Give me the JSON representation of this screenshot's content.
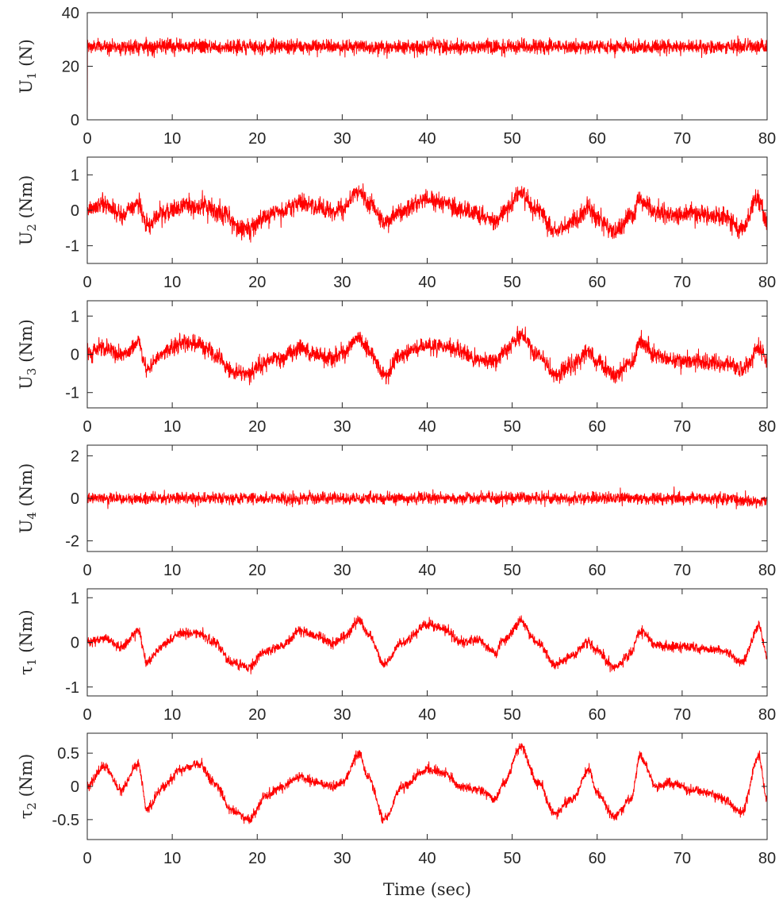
{
  "chart_data": [
    {
      "type": "line",
      "ylabel": "U_1 (N)",
      "ylabel_main": "U",
      "ylabel_sub": "1",
      "ylabel_unit": " (N)",
      "xlim": [
        0,
        80
      ],
      "ylim": [
        0,
        40
      ],
      "xticks": [
        "0",
        "10",
        "20",
        "30",
        "40",
        "50",
        "60",
        "70",
        "80"
      ],
      "yticks": [
        {
          "v": 0,
          "t": "0"
        },
        {
          "v": 20,
          "t": "20"
        },
        {
          "v": 40,
          "t": "40"
        }
      ],
      "xlabel": "",
      "grid": false,
      "series": [
        {
          "color": "#ff0000",
          "start": 0,
          "mean": 27.3,
          "noise": 1.3,
          "drift": 0.0,
          "slow": [
            [
              0.0,
              0.0
            ]
          ]
        }
      ]
    },
    {
      "type": "line",
      "ylabel": "U_2 (Nm)",
      "ylabel_main": "U",
      "ylabel_sub": "2",
      "ylabel_unit": " (Nm)",
      "xlim": [
        0,
        80
      ],
      "ylim": [
        -1.5,
        1.5
      ],
      "xticks": [
        "0",
        "10",
        "20",
        "30",
        "40",
        "50",
        "60",
        "70",
        "80"
      ],
      "yticks": [
        {
          "v": -1,
          "t": "-1"
        },
        {
          "v": 0,
          "t": "0"
        },
        {
          "v": 1,
          "t": "1"
        }
      ],
      "xlabel": "",
      "grid": false,
      "series": [
        {
          "color": "#ff0000",
          "noise": 0.17,
          "slow": [
            [
              0,
              0.05
            ],
            [
              2,
              0.15
            ],
            [
              4,
              -0.1
            ],
            [
              6,
              0.2
            ],
            [
              7,
              -0.4
            ],
            [
              9,
              -0.1
            ],
            [
              12,
              0.15
            ],
            [
              14,
              0.1
            ],
            [
              16,
              -0.1
            ],
            [
              18,
              -0.5
            ],
            [
              19,
              -0.55
            ],
            [
              21,
              -0.2
            ],
            [
              23,
              -0.05
            ],
            [
              25,
              0.2
            ],
            [
              27,
              0.1
            ],
            [
              29,
              -0.05
            ],
            [
              30,
              0.1
            ],
            [
              32,
              0.55
            ],
            [
              33,
              0.25
            ],
            [
              35,
              -0.35
            ],
            [
              37,
              0.0
            ],
            [
              40,
              0.3
            ],
            [
              42,
              0.25
            ],
            [
              44,
              0.0
            ],
            [
              46,
              -0.1
            ],
            [
              48,
              -0.35
            ],
            [
              49,
              -0.05
            ],
            [
              51,
              0.45
            ],
            [
              53,
              0.0
            ],
            [
              55,
              -0.6
            ],
            [
              57,
              -0.35
            ],
            [
              59,
              0.05
            ],
            [
              60,
              -0.2
            ],
            [
              62,
              -0.65
            ],
            [
              64,
              -0.2
            ],
            [
              65,
              0.3
            ],
            [
              67,
              -0.05
            ],
            [
              69,
              -0.15
            ],
            [
              71,
              -0.1
            ],
            [
              73,
              -0.15
            ],
            [
              75,
              -0.2
            ],
            [
              77,
              -0.5
            ],
            [
              79,
              0.3
            ],
            [
              80,
              -0.3
            ]
          ]
        }
      ]
    },
    {
      "type": "line",
      "ylabel": "U_3 (Nm)",
      "ylabel_main": "U",
      "ylabel_sub": "3",
      "ylabel_unit": " (Nm)",
      "xlim": [
        0,
        80
      ],
      "ylim": [
        -1.4,
        1.4
      ],
      "xticks": [
        "0",
        "10",
        "20",
        "30",
        "40",
        "50",
        "60",
        "70",
        "80"
      ],
      "yticks": [
        {
          "v": -1,
          "t": "-1"
        },
        {
          "v": 0,
          "t": "0"
        },
        {
          "v": 1,
          "t": "1"
        }
      ],
      "xlabel": "",
      "grid": false,
      "series": [
        {
          "color": "#ff0000",
          "noise": 0.14,
          "slow": [
            [
              0,
              0.0
            ],
            [
              2,
              0.15
            ],
            [
              4,
              -0.05
            ],
            [
              6,
              0.3
            ],
            [
              7,
              -0.4
            ],
            [
              9,
              0.05
            ],
            [
              11,
              0.3
            ],
            [
              13,
              0.3
            ],
            [
              15,
              0.0
            ],
            [
              17,
              -0.45
            ],
            [
              19,
              -0.5
            ],
            [
              21,
              -0.2
            ],
            [
              23,
              -0.1
            ],
            [
              25,
              0.15
            ],
            [
              27,
              0.0
            ],
            [
              29,
              -0.1
            ],
            [
              30,
              0.05
            ],
            [
              32,
              0.4
            ],
            [
              33,
              0.1
            ],
            [
              35,
              -0.55
            ],
            [
              37,
              0.0
            ],
            [
              40,
              0.25
            ],
            [
              42,
              0.2
            ],
            [
              44,
              0.05
            ],
            [
              46,
              -0.15
            ],
            [
              48,
              -0.2
            ],
            [
              49,
              0.05
            ],
            [
              51,
              0.5
            ],
            [
              53,
              0.0
            ],
            [
              55,
              -0.55
            ],
            [
              57,
              -0.3
            ],
            [
              59,
              0.1
            ],
            [
              60,
              -0.2
            ],
            [
              62,
              -0.55
            ],
            [
              64,
              -0.25
            ],
            [
              65,
              0.35
            ],
            [
              67,
              0.0
            ],
            [
              69,
              -0.15
            ],
            [
              71,
              -0.15
            ],
            [
              73,
              -0.2
            ],
            [
              75,
              -0.25
            ],
            [
              77,
              -0.4
            ],
            [
              79,
              0.15
            ],
            [
              80,
              -0.1
            ]
          ]
        }
      ]
    },
    {
      "type": "line",
      "ylabel": "U_4 (Nm)",
      "ylabel_main": "U",
      "ylabel_sub": "4",
      "ylabel_unit": " (Nm)",
      "xlim": [
        0,
        80
      ],
      "ylim": [
        -2.5,
        2.5
      ],
      "xticks": [
        "0",
        "10",
        "20",
        "30",
        "40",
        "50",
        "60",
        "70",
        "80"
      ],
      "yticks": [
        {
          "v": -2,
          "t": "-2"
        },
        {
          "v": 0,
          "t": "0"
        },
        {
          "v": 2,
          "t": "2"
        }
      ],
      "xlabel": "",
      "grid": false,
      "series": [
        {
          "color": "#ff0000",
          "noise": 0.17,
          "slow": [
            [
              0,
              0.0
            ],
            [
              40,
              0.0
            ],
            [
              76,
              0.0
            ],
            [
              78,
              -0.15
            ],
            [
              80,
              -0.1
            ]
          ]
        }
      ]
    },
    {
      "type": "line",
      "ylabel": "τ_1 (Nm)",
      "ylabel_main": "τ",
      "ylabel_sub": "1",
      "ylabel_unit": " (Nm)",
      "xlim": [
        0,
        80
      ],
      "ylim": [
        -1.2,
        1.2
      ],
      "xticks": [
        "0",
        "10",
        "20",
        "30",
        "40",
        "50",
        "60",
        "70",
        "80"
      ],
      "yticks": [
        {
          "v": -1,
          "t": "-1"
        },
        {
          "v": 0,
          "t": "0"
        },
        {
          "v": 1,
          "t": "1"
        }
      ],
      "xlabel": "",
      "grid": false,
      "series": [
        {
          "color": "#ff0000",
          "noise": 0.07,
          "slow": [
            [
              0,
              0.0
            ],
            [
              2,
              0.1
            ],
            [
              4,
              -0.1
            ],
            [
              6,
              0.25
            ],
            [
              7,
              -0.45
            ],
            [
              9,
              -0.05
            ],
            [
              11,
              0.2
            ],
            [
              13,
              0.2
            ],
            [
              15,
              0.0
            ],
            [
              17,
              -0.45
            ],
            [
              19,
              -0.55
            ],
            [
              21,
              -0.2
            ],
            [
              23,
              -0.05
            ],
            [
              25,
              0.25
            ],
            [
              27,
              0.15
            ],
            [
              29,
              -0.05
            ],
            [
              30,
              0.1
            ],
            [
              32,
              0.5
            ],
            [
              33,
              0.2
            ],
            [
              35,
              -0.5
            ],
            [
              37,
              0.0
            ],
            [
              40,
              0.4
            ],
            [
              42,
              0.3
            ],
            [
              44,
              0.0
            ],
            [
              46,
              0.05
            ],
            [
              48,
              -0.25
            ],
            [
              49,
              0.05
            ],
            [
              51,
              0.45
            ],
            [
              53,
              0.0
            ],
            [
              55,
              -0.5
            ],
            [
              57,
              -0.3
            ],
            [
              59,
              0.0
            ],
            [
              60,
              -0.2
            ],
            [
              62,
              -0.55
            ],
            [
              64,
              -0.25
            ],
            [
              65,
              0.25
            ],
            [
              67,
              -0.05
            ],
            [
              69,
              -0.1
            ],
            [
              71,
              -0.1
            ],
            [
              73,
              -0.15
            ],
            [
              75,
              -0.2
            ],
            [
              77,
              -0.45
            ],
            [
              79,
              0.35
            ],
            [
              80,
              -0.3
            ]
          ]
        }
      ]
    },
    {
      "type": "line",
      "ylabel": "τ_2 (Nm)",
      "ylabel_main": "τ",
      "ylabel_sub": "2",
      "ylabel_unit": " (Nm)",
      "xlim": [
        0,
        80
      ],
      "ylim": [
        -0.8,
        0.8
      ],
      "xticks": [
        "0",
        "10",
        "20",
        "30",
        "40",
        "50",
        "60",
        "70",
        "80"
      ],
      "yticks": [
        {
          "v": -0.5,
          "t": "-0.5"
        },
        {
          "v": 0,
          "t": "0"
        },
        {
          "v": 0.5,
          "t": "0.5"
        }
      ],
      "xlabel": "Time (sec)",
      "grid": false,
      "series": [
        {
          "color": "#ff0000",
          "noise": 0.045,
          "slow": [
            [
              0,
              0.0
            ],
            [
              2,
              0.3
            ],
            [
              4,
              -0.05
            ],
            [
              6,
              0.35
            ],
            [
              7,
              -0.35
            ],
            [
              9,
              0.0
            ],
            [
              11,
              0.25
            ],
            [
              13,
              0.35
            ],
            [
              15,
              0.05
            ],
            [
              17,
              -0.35
            ],
            [
              19,
              -0.5
            ],
            [
              21,
              -0.15
            ],
            [
              23,
              0.0
            ],
            [
              25,
              0.15
            ],
            [
              27,
              0.05
            ],
            [
              29,
              0.0
            ],
            [
              30,
              0.05
            ],
            [
              32,
              0.5
            ],
            [
              33,
              0.15
            ],
            [
              35,
              -0.5
            ],
            [
              37,
              0.0
            ],
            [
              40,
              0.25
            ],
            [
              42,
              0.2
            ],
            [
              44,
              0.0
            ],
            [
              46,
              -0.05
            ],
            [
              48,
              -0.2
            ],
            [
              49,
              0.05
            ],
            [
              51,
              0.6
            ],
            [
              53,
              0.05
            ],
            [
              55,
              -0.4
            ],
            [
              57,
              -0.2
            ],
            [
              59,
              0.25
            ],
            [
              60,
              -0.1
            ],
            [
              62,
              -0.45
            ],
            [
              64,
              -0.2
            ],
            [
              65,
              0.45
            ],
            [
              67,
              0.0
            ],
            [
              69,
              0.05
            ],
            [
              71,
              -0.05
            ],
            [
              73,
              -0.1
            ],
            [
              75,
              -0.2
            ],
            [
              77,
              -0.4
            ],
            [
              79,
              0.45
            ],
            [
              80,
              -0.2
            ]
          ]
        }
      ]
    }
  ]
}
